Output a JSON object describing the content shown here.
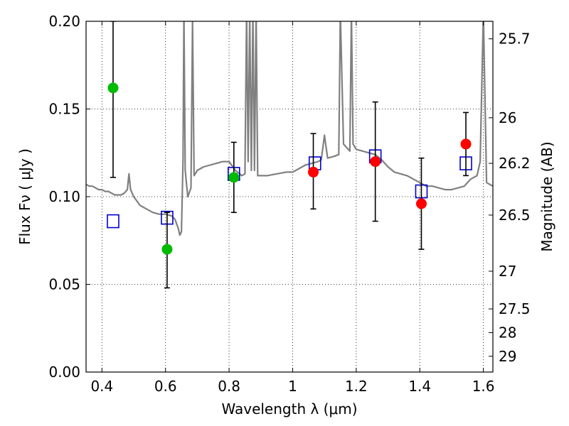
{
  "chart_data": {
    "type": "scatter",
    "title": "",
    "xlabel": "Wavelength  λ (μm)",
    "ylabel": "Flux  Fν  ( μJy )",
    "ylabel_right": "Magnitude (AB)",
    "xlim": [
      0.35,
      1.63
    ],
    "ylim": [
      0.0,
      0.2
    ],
    "grid": true,
    "x_ticks": [
      0.4,
      0.6,
      0.8,
      1.0,
      1.2,
      1.4,
      1.6
    ],
    "x_tick_labels": [
      "0.4",
      "0.6",
      "0.8",
      "1",
      "1.2",
      "1.4",
      "1.6"
    ],
    "y_ticks": [
      0.0,
      0.05,
      0.1,
      0.15,
      0.2
    ],
    "y_tick_labels": [
      "0.00",
      "0.05",
      "0.10",
      "0.15",
      "0.20"
    ],
    "right_axis_ticks": [
      {
        "label": "25.7",
        "flux": 0.19
      },
      {
        "label": "26",
        "flux": 0.145
      },
      {
        "label": "26.2",
        "flux": 0.119
      },
      {
        "label": "26.5",
        "flux": 0.0895
      },
      {
        "label": "27",
        "flux": 0.0575
      },
      {
        "label": "27.5",
        "flux": 0.036
      },
      {
        "label": "28",
        "flux": 0.0225
      },
      {
        "label": "29",
        "flux": 0.009
      }
    ],
    "colors": {
      "model": "#808080",
      "green": "#00bb00",
      "red": "#ff0000",
      "blue": "#0000cc",
      "error_bar": "#000000"
    },
    "series": [
      {
        "kind": "line",
        "points": [
          [
            0.35,
            0.107
          ],
          [
            0.36,
            0.106
          ],
          [
            0.37,
            0.106
          ],
          [
            0.38,
            0.105
          ],
          [
            0.39,
            0.104
          ],
          [
            0.4,
            0.104
          ],
          [
            0.41,
            0.103
          ],
          [
            0.42,
            0.103
          ],
          [
            0.43,
            0.102
          ],
          [
            0.44,
            0.101
          ],
          [
            0.45,
            0.101
          ],
          [
            0.46,
            0.101
          ],
          [
            0.47,
            0.102
          ],
          [
            0.48,
            0.104
          ],
          [
            0.485,
            0.113
          ],
          [
            0.49,
            0.104
          ],
          [
            0.5,
            0.1
          ],
          [
            0.52,
            0.095
          ],
          [
            0.54,
            0.093
          ],
          [
            0.56,
            0.091
          ],
          [
            0.58,
            0.09
          ],
          [
            0.6,
            0.09
          ],
          [
            0.62,
            0.089
          ],
          [
            0.63,
            0.087
          ],
          [
            0.64,
            0.082
          ],
          [
            0.645,
            0.078
          ],
          [
            0.65,
            0.08
          ],
          [
            0.655,
            0.12
          ],
          [
            0.658,
            0.205
          ],
          [
            0.662,
            0.115
          ],
          [
            0.67,
            0.1
          ],
          [
            0.68,
            0.105
          ],
          [
            0.685,
            0.2
          ],
          [
            0.69,
            0.112
          ],
          [
            0.7,
            0.115
          ],
          [
            0.72,
            0.117
          ],
          [
            0.74,
            0.118
          ],
          [
            0.76,
            0.119
          ],
          [
            0.78,
            0.12
          ],
          [
            0.8,
            0.12
          ],
          [
            0.82,
            0.115
          ],
          [
            0.84,
            0.112
          ],
          [
            0.85,
            0.113
          ],
          [
            0.855,
            0.205
          ],
          [
            0.86,
            0.12
          ],
          [
            0.865,
            0.205
          ],
          [
            0.87,
            0.115
          ],
          [
            0.875,
            0.205
          ],
          [
            0.88,
            0.115
          ],
          [
            0.885,
            0.205
          ],
          [
            0.89,
            0.112
          ],
          [
            0.92,
            0.112
          ],
          [
            0.95,
            0.113
          ],
          [
            0.98,
            0.114
          ],
          [
            1.0,
            0.114
          ],
          [
            1.02,
            0.116
          ],
          [
            1.04,
            0.118
          ],
          [
            1.06,
            0.119
          ],
          [
            1.08,
            0.12
          ],
          [
            1.09,
            0.121
          ],
          [
            1.1,
            0.135
          ],
          [
            1.11,
            0.122
          ],
          [
            1.13,
            0.123
          ],
          [
            1.145,
            0.124
          ],
          [
            1.15,
            0.205
          ],
          [
            1.16,
            0.13
          ],
          [
            1.18,
            0.126
          ],
          [
            1.185,
            0.205
          ],
          [
            1.19,
            0.13
          ],
          [
            1.2,
            0.127
          ],
          [
            1.22,
            0.126
          ],
          [
            1.24,
            0.125
          ],
          [
            1.26,
            0.124
          ],
          [
            1.28,
            0.121
          ],
          [
            1.3,
            0.117
          ],
          [
            1.32,
            0.114
          ],
          [
            1.34,
            0.113
          ],
          [
            1.36,
            0.112
          ],
          [
            1.38,
            0.11
          ],
          [
            1.4,
            0.108
          ],
          [
            1.42,
            0.106
          ],
          [
            1.44,
            0.106
          ],
          [
            1.46,
            0.105
          ],
          [
            1.48,
            0.104
          ],
          [
            1.5,
            0.104
          ],
          [
            1.52,
            0.105
          ],
          [
            1.54,
            0.106
          ],
          [
            1.56,
            0.11
          ],
          [
            1.58,
            0.112
          ],
          [
            1.59,
            0.12
          ],
          [
            1.6,
            0.205
          ],
          [
            1.61,
            0.108
          ],
          [
            1.62,
            0.107
          ],
          [
            1.63,
            0.106
          ]
        ]
      },
      {
        "kind": "points-green",
        "points": [
          {
            "x": 0.435,
            "y": 0.162,
            "err_lo": 0.111,
            "err_hi": 0.2
          },
          {
            "x": 0.605,
            "y": 0.07,
            "err_lo": 0.048,
            "err_hi": 0.091
          },
          {
            "x": 0.815,
            "y": 0.111,
            "err_lo": 0.091,
            "err_hi": 0.131
          }
        ]
      },
      {
        "kind": "points-red",
        "points": [
          {
            "x": 1.065,
            "y": 0.114,
            "err_lo": 0.093,
            "err_hi": 0.136
          },
          {
            "x": 1.26,
            "y": 0.12,
            "err_lo": 0.086,
            "err_hi": 0.154
          },
          {
            "x": 1.405,
            "y": 0.096,
            "err_lo": 0.07,
            "err_hi": 0.122
          },
          {
            "x": 1.545,
            "y": 0.13,
            "err_lo": 0.112,
            "err_hi": 0.148
          }
        ]
      },
      {
        "kind": "squares-blue",
        "points": [
          {
            "x": 0.435,
            "y": 0.086
          },
          {
            "x": 0.605,
            "y": 0.088
          },
          {
            "x": 0.815,
            "y": 0.113
          },
          {
            "x": 1.07,
            "y": 0.119
          },
          {
            "x": 1.26,
            "y": 0.123
          },
          {
            "x": 1.405,
            "y": 0.103
          },
          {
            "x": 1.545,
            "y": 0.119
          }
        ]
      }
    ]
  }
}
